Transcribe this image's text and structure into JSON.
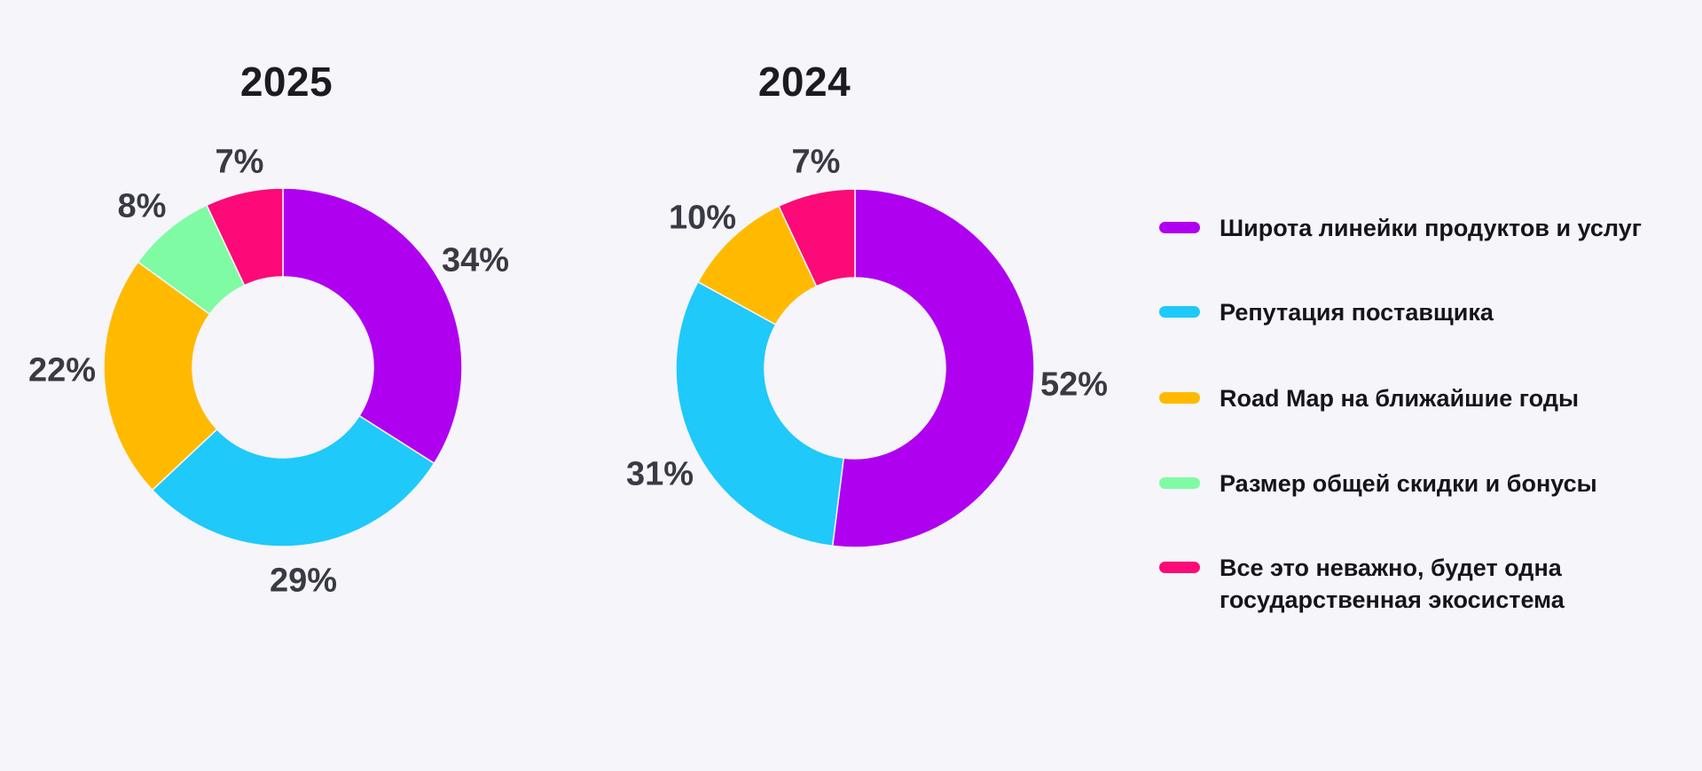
{
  "page": {
    "background_color": "#f5f5fa",
    "text_color_dark": "#1b1b22",
    "text_color_labels": "#3a3a44"
  },
  "chart_data": [
    {
      "type": "pie",
      "donut": true,
      "title": "2025",
      "unit": "%",
      "start_angle_deg": 0,
      "direction": "clockwise",
      "labels": [
        "Широта линейки продуктов и услуг",
        "Репутация поставщика",
        "Road Map на ближайшие годы",
        "Размер общей скидки и бонусы",
        "Все это неважно, будет одна государственная экосистема"
      ],
      "values": [
        34,
        29,
        22,
        8,
        7
      ],
      "colors": [
        "#af00f0",
        "#1fc9fa",
        "#ffba00",
        "#7ffba4",
        "#fb0a78"
      ]
    },
    {
      "type": "pie",
      "donut": true,
      "title": "2024",
      "unit": "%",
      "start_angle_deg": 0,
      "direction": "clockwise",
      "labels": [
        "Широта линейки продуктов и услуг",
        "Репутация поставщика",
        "Road Map на ближайшие годы",
        "Все это неважно, будет одна государственная экосистема"
      ],
      "values": [
        52,
        31,
        10,
        7
      ],
      "colors": [
        "#af00f0",
        "#1fc9fa",
        "#ffba00",
        "#fb0a78"
      ]
    }
  ],
  "legend": {
    "position": "right",
    "items": [
      {
        "label": "Широта линейки продуктов и услуг",
        "color": "#af00f0"
      },
      {
        "label": "Репутация поставщика",
        "color": "#1fc9fa"
      },
      {
        "label": "Road Map на ближайшие годы",
        "color": "#ffba00"
      },
      {
        "label": "Размер общей скидки и бонусы",
        "color": "#7ffba4"
      },
      {
        "label": "Все это неважно, будет одна государственная экосистема",
        "color": "#fb0a78"
      }
    ]
  }
}
